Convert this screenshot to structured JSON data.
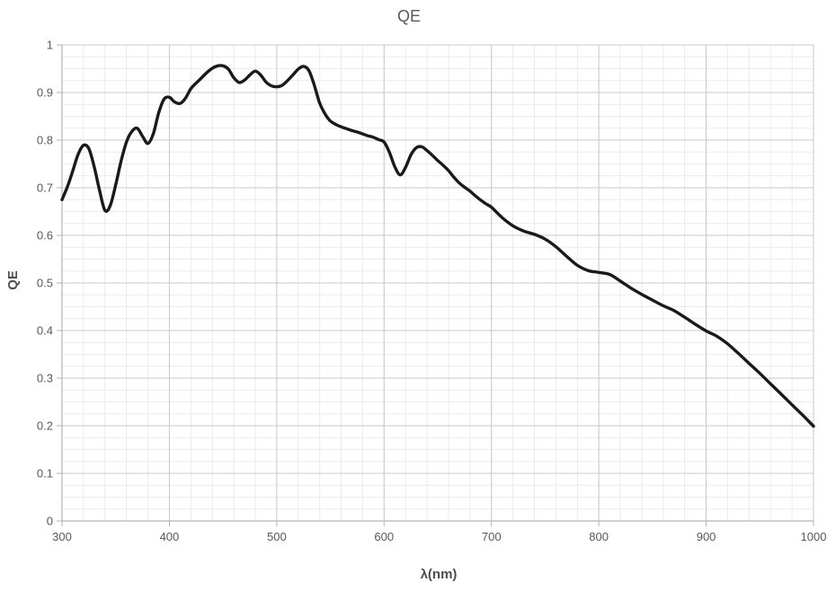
{
  "page": {
    "background": "#ffffff"
  },
  "chart_data": {
    "type": "line",
    "title": "QE",
    "xlabel": "λ(nm)",
    "ylabel": "QE",
    "xlim": [
      300,
      1000
    ],
    "ylim": [
      0,
      1
    ],
    "x_tick_values": [
      300,
      400,
      500,
      600,
      700,
      800,
      900,
      1000
    ],
    "x_tick_labels": [
      "300",
      "400",
      "500",
      "600",
      "700",
      "800",
      "900",
      "1000"
    ],
    "y_tick_values": [
      0,
      0.1,
      0.2,
      0.3,
      0.4,
      0.5,
      0.6,
      0.7,
      0.8,
      0.9,
      1
    ],
    "y_tick_labels": [
      "0",
      "0.1",
      "0.2",
      "0.3",
      "0.4",
      "0.5",
      "0.6",
      "0.7",
      "0.8",
      "0.9",
      "1"
    ],
    "x_minor_step": 20,
    "y_minor_step": 0.025,
    "grid": "solid major and minor gridlines, both axes",
    "legend_position": "none",
    "colors": {
      "curve": "#1a1a1a",
      "grid_major": "#c9c9c9",
      "grid_minor": "#ebebeb",
      "axis": "#b3b3b3",
      "text": "#595959"
    },
    "series": [
      {
        "name": "QE",
        "x": [
          300,
          305,
          310,
          315,
          320,
          325,
          330,
          335,
          340,
          345,
          350,
          355,
          360,
          365,
          370,
          375,
          380,
          385,
          390,
          395,
          400,
          405,
          410,
          415,
          420,
          425,
          430,
          435,
          440,
          445,
          450,
          455,
          460,
          465,
          470,
          475,
          480,
          485,
          490,
          495,
          500,
          505,
          510,
          515,
          520,
          525,
          530,
          535,
          540,
          545,
          550,
          555,
          560,
          565,
          570,
          575,
          580,
          585,
          590,
          595,
          600,
          605,
          610,
          615,
          620,
          625,
          630,
          635,
          640,
          645,
          650,
          655,
          660,
          665,
          670,
          675,
          680,
          685,
          690,
          695,
          700,
          710,
          720,
          730,
          740,
          750,
          760,
          770,
          780,
          790,
          800,
          810,
          820,
          830,
          840,
          850,
          860,
          870,
          880,
          890,
          900,
          910,
          920,
          930,
          940,
          950,
          960,
          970,
          980,
          990,
          1000
        ],
        "y": [
          0.675,
          0.702,
          0.735,
          0.77,
          0.789,
          0.782,
          0.744,
          0.694,
          0.652,
          0.663,
          0.706,
          0.756,
          0.796,
          0.818,
          0.825,
          0.808,
          0.793,
          0.813,
          0.857,
          0.886,
          0.89,
          0.88,
          0.877,
          0.888,
          0.908,
          0.92,
          0.931,
          0.942,
          0.951,
          0.956,
          0.956,
          0.949,
          0.931,
          0.921,
          0.926,
          0.937,
          0.945,
          0.937,
          0.922,
          0.914,
          0.912,
          0.915,
          0.925,
          0.937,
          0.949,
          0.955,
          0.946,
          0.915,
          0.878,
          0.855,
          0.84,
          0.833,
          0.828,
          0.824,
          0.82,
          0.817,
          0.813,
          0.809,
          0.806,
          0.801,
          0.796,
          0.774,
          0.744,
          0.727,
          0.743,
          0.769,
          0.784,
          0.786,
          0.778,
          0.768,
          0.757,
          0.747,
          0.736,
          0.722,
          0.71,
          0.701,
          0.693,
          0.683,
          0.674,
          0.666,
          0.659,
          0.637,
          0.62,
          0.609,
          0.602,
          0.592,
          0.576,
          0.556,
          0.537,
          0.526,
          0.522,
          0.518,
          0.504,
          0.489,
          0.476,
          0.464,
          0.452,
          0.442,
          0.428,
          0.413,
          0.399,
          0.388,
          0.372,
          0.352,
          0.331,
          0.31,
          0.288,
          0.266,
          0.244,
          0.222,
          0.199
        ]
      }
    ]
  }
}
